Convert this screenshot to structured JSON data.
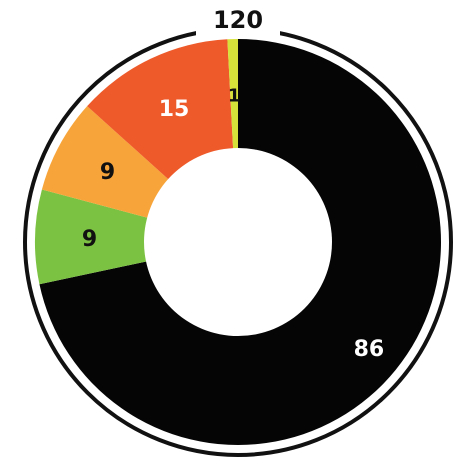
{
  "chart_data": {
    "type": "pie",
    "title": "120",
    "total": 120,
    "values": [
      86,
      9,
      9,
      15,
      1
    ],
    "labels": [
      "86",
      "9",
      "9",
      "15",
      "1"
    ],
    "colors": [
      "#050505",
      "#7cc242",
      "#f7a53a",
      "#ee5a2a",
      "#d6e23a"
    ],
    "label_colors": [
      "#ffffff",
      "#111111",
      "#111111",
      "#ffffff",
      "#111111"
    ],
    "direction": "clockwise",
    "start": "top"
  }
}
